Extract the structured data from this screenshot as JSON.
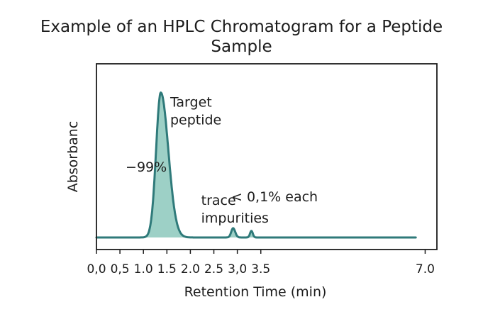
{
  "chart_data": {
    "type": "line",
    "title_lines": [
      "Example of an HPLC Chromatogram for a Peptide",
      "Sample"
    ],
    "xlabel": "Retention Time (min)",
    "ylabel": "Absorbanc",
    "xlim": [
      0.0,
      7.25
    ],
    "ylim": [
      0,
      1
    ],
    "x_ticks": [
      0.0,
      0.5,
      1.0,
      1.5,
      2.0,
      2.5,
      3.0,
      3.5,
      7.0
    ],
    "x_tick_labels": [
      "0,0",
      "0,5",
      "1.0",
      "1.5",
      "2.0",
      "2.5",
      "3,0",
      "3.5",
      "7.0"
    ],
    "grid": false,
    "legend": "none",
    "baseline": 0.065,
    "trace_end_x": 6.8,
    "peaks": [
      {
        "x": 1.37,
        "height": 0.78,
        "width_left": 0.1,
        "width_right": 0.16,
        "filled": true
      },
      {
        "x": 2.91,
        "height": 0.05,
        "width_left": 0.04,
        "width_right": 0.045,
        "filled": true
      },
      {
        "x": 3.3,
        "height": 0.035,
        "width_left": 0.03,
        "width_right": 0.03,
        "filled": true
      }
    ],
    "annotations": [
      {
        "name": "annotation-target-peptide",
        "lines": [
          "Target",
          "peptide"
        ],
        "x": 1.57,
        "y": 0.77
      },
      {
        "name": "annotation-percent-main",
        "lines": [
          "−99%"
        ],
        "x": 0.62,
        "y": 0.42
      },
      {
        "name": "annotation-trace-impurities",
        "lines": [
          "trace",
          "impurities"
        ],
        "x": 2.23,
        "y": 0.24
      },
      {
        "name": "annotation-percent-each",
        "lines": [
          "< 0,1% each"
        ],
        "x": 2.87,
        "y": 0.26
      }
    ],
    "colors": {
      "line": "#2f7a7a",
      "fill": "#9dd0c6",
      "axis": "#1c1c1c"
    }
  }
}
